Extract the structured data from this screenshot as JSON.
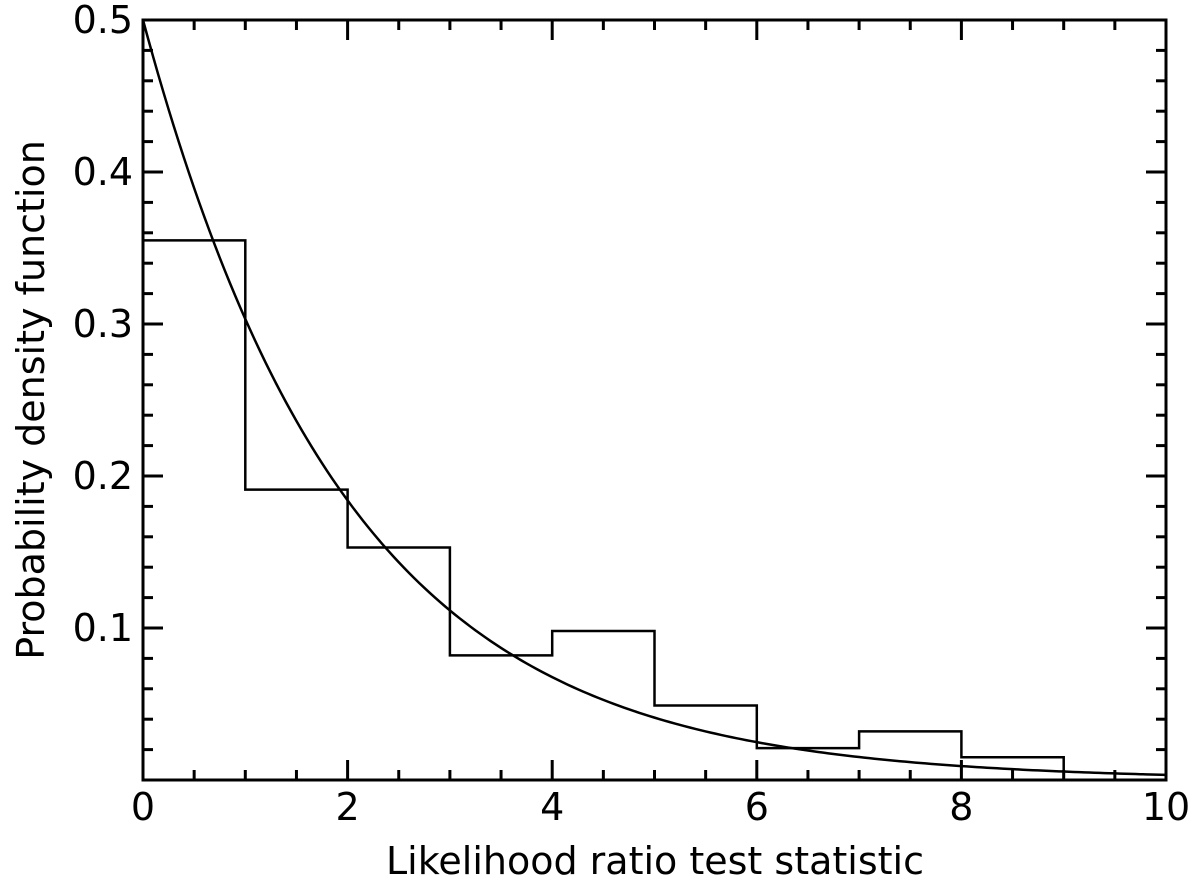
{
  "chart_data": {
    "type": "histogram",
    "title": "",
    "xlabel": "Likelihood ratio test statistic",
    "ylabel": "Probability density function",
    "xlim": [
      0,
      10
    ],
    "ylim": [
      0,
      0.5
    ],
    "x_ticks": [
      0,
      2,
      4,
      6,
      8,
      10
    ],
    "x_tick_labels": [
      "0",
      "2",
      "4",
      "6",
      "8",
      "10"
    ],
    "y_ticks": [
      0.1,
      0.2,
      0.3,
      0.4,
      0.5
    ],
    "y_tick_labels": [
      "0.1",
      "0.2",
      "0.3",
      "0.4",
      "0.5"
    ],
    "grid": false,
    "histogram": {
      "bin_edges": [
        0,
        1,
        2,
        3,
        4,
        5,
        6,
        7,
        8,
        9
      ],
      "values": [
        0.355,
        0.191,
        0.153,
        0.082,
        0.098,
        0.049,
        0.021,
        0.032,
        0.015
      ]
    },
    "curve": {
      "expression": "0.5 * exp(-x / 2)",
      "x": [
        0,
        0.5,
        1,
        1.5,
        2,
        2.5,
        3,
        3.5,
        4,
        4.5,
        5,
        5.5,
        6,
        6.5,
        7,
        7.5,
        8,
        8.5,
        9,
        9.5,
        10
      ],
      "y": [
        0.5,
        0.3894,
        0.3033,
        0.2362,
        0.1839,
        0.1433,
        0.1116,
        0.0869,
        0.0677,
        0.0527,
        0.041,
        0.032,
        0.0249,
        0.0194,
        0.0151,
        0.0118,
        0.0092,
        0.0071,
        0.0056,
        0.0043,
        0.0034
      ]
    }
  }
}
